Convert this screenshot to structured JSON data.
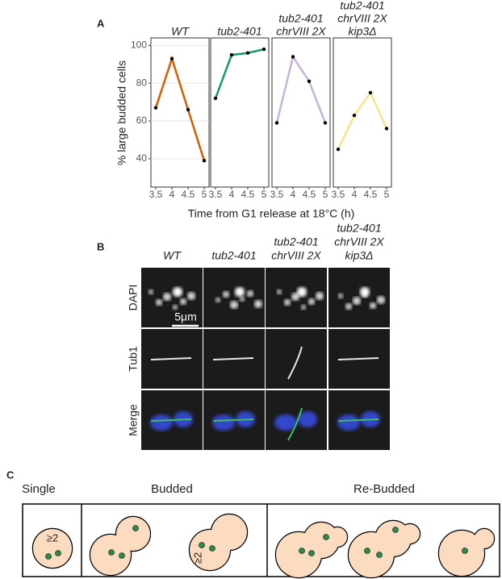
{
  "panel_a": {
    "label": "A",
    "x_label": "Time from G1 release at 18°C (h)",
    "y_label": "% large budded cells"
  },
  "chart_data": [
    {
      "type": "line",
      "title": [
        "WT"
      ],
      "x": [
        3.5,
        4,
        4.5,
        5
      ],
      "values": [
        67,
        93,
        66,
        39
      ],
      "color": "#d55e00",
      "xlim": [
        3.35,
        5.15
      ],
      "ylim": [
        25,
        104
      ],
      "xticks": [
        3.5,
        4,
        4.5,
        5
      ],
      "yticks": [
        40,
        60,
        80,
        100
      ]
    },
    {
      "type": "line",
      "title": [
        "tub2-401"
      ],
      "x": [
        3.5,
        4,
        4.5,
        5
      ],
      "values": [
        72,
        95,
        96,
        98
      ],
      "color": "#129a6b",
      "xlim": [
        3.35,
        5.15
      ],
      "ylim": [
        25,
        104
      ],
      "xticks": [
        3.5,
        4,
        4.5,
        5
      ]
    },
    {
      "type": "line",
      "title": [
        "tub2-401",
        "chrVIII 2X"
      ],
      "x": [
        3.5,
        4,
        4.5,
        5
      ],
      "values": [
        59,
        94,
        81,
        59
      ],
      "color": "#c6b4d8",
      "xlim": [
        3.35,
        5.15
      ],
      "ylim": [
        25,
        104
      ],
      "xticks": [
        3.5,
        4,
        4.5,
        5
      ]
    },
    {
      "type": "line",
      "title": [
        "tub2-401",
        "chrVIII 2X",
        "kip3Δ"
      ],
      "x": [
        3.5,
        4,
        4.5,
        5
      ],
      "values": [
        45,
        63,
        75,
        56
      ],
      "color": "#f7e48a",
      "xlim": [
        3.35,
        5.15
      ],
      "ylim": [
        25,
        104
      ],
      "xticks": [
        3.5,
        4,
        4.5,
        5
      ]
    }
  ],
  "panel_b": {
    "label": "B",
    "columns": [
      [
        "WT"
      ],
      [
        "tub2-401"
      ],
      [
        "tub2-401",
        "chrVIII 2X"
      ],
      [
        "tub2-401",
        "chrVIII 2X",
        "kip3Δ"
      ]
    ],
    "rows": [
      "DAPI",
      "Tub1",
      "Merge"
    ],
    "scale_bar": "5μm"
  },
  "panel_c": {
    "label": "C",
    "groups": [
      "Single",
      "Budded",
      "Re-Budded"
    ],
    "annotations": [
      "≥2",
      "≥2"
    ]
  }
}
